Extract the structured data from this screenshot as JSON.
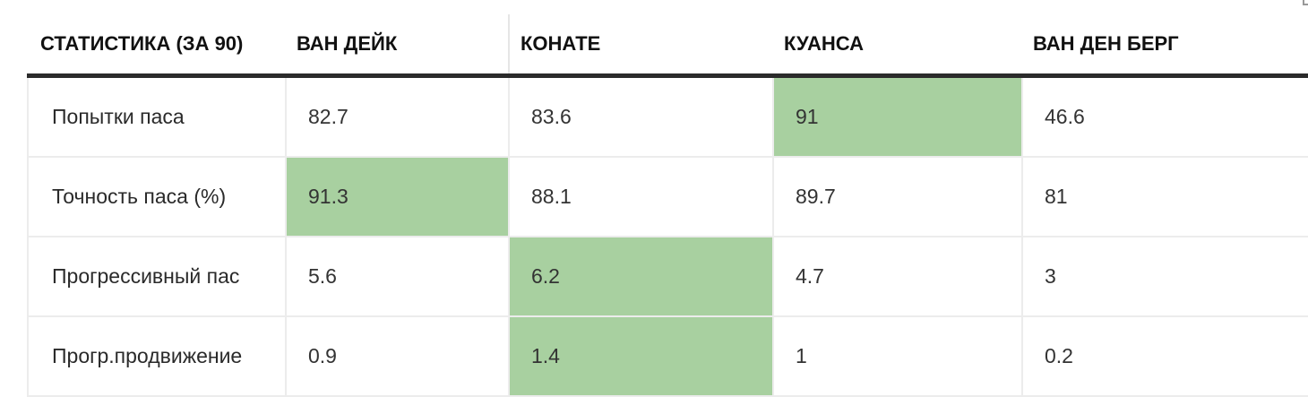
{
  "table": {
    "headers": [
      "СТАТИСТИКА (ЗА 90)",
      "ВАН ДЕЙК",
      "КОНАТЕ",
      "КУАНСА",
      "ВАН ДЕН БЕРГ"
    ],
    "rows": [
      {
        "label": "Попытки паса",
        "values": [
          "82.7",
          "83.6",
          "91",
          "46.6"
        ],
        "best_index": 2
      },
      {
        "label": "Точность паса (%)",
        "values": [
          "91.3",
          "88.1",
          "89.7",
          "81"
        ],
        "best_index": 0
      },
      {
        "label": "Прогрессивный пас",
        "values": [
          "5.6",
          "6.2",
          "4.7",
          "3"
        ],
        "best_index": 1
      },
      {
        "label": "Прогр.продвижение",
        "values": [
          "0.9",
          "1.4",
          "1",
          "0.2"
        ],
        "best_index": 1
      }
    ],
    "highlight_color": "#a8d0a0",
    "header_rule_color": "#2b2b2b"
  }
}
